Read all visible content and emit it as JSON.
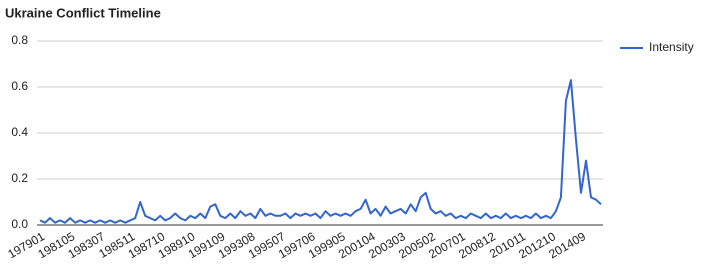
{
  "chart_data": {
    "type": "line",
    "title": "Ukraine Conflict Timeline",
    "categories": [
      "197901",
      null,
      null,
      null,
      null,
      null,
      "198105",
      null,
      null,
      null,
      null,
      null,
      "198307",
      null,
      null,
      null,
      null,
      null,
      "198511",
      null,
      null,
      null,
      null,
      null,
      "198710",
      null,
      null,
      null,
      null,
      null,
      "198910",
      null,
      null,
      null,
      null,
      null,
      "199109",
      null,
      null,
      null,
      null,
      null,
      "199308",
      null,
      null,
      null,
      null,
      null,
      "199507",
      null,
      null,
      null,
      null,
      null,
      "199706",
      null,
      null,
      null,
      null,
      null,
      "199905",
      null,
      null,
      null,
      null,
      null,
      "200104",
      null,
      null,
      null,
      null,
      null,
      "200303",
      null,
      null,
      null,
      null,
      null,
      "200502",
      null,
      null,
      null,
      null,
      null,
      "200701",
      null,
      null,
      null,
      null,
      null,
      "200812",
      null,
      null,
      null,
      null,
      null,
      "201011",
      null,
      null,
      null,
      null,
      null,
      "201210",
      null,
      null,
      null,
      null,
      null,
      "201409",
      null,
      null,
      null,
      null
    ],
    "series": [
      {
        "name": "Intensity",
        "color": "#3366cc",
        "values": [
          0.02,
          0.01,
          0.03,
          0.01,
          0.02,
          0.01,
          0.03,
          0.01,
          0.02,
          0.01,
          0.02,
          0.01,
          0.02,
          0.01,
          0.02,
          0.01,
          0.02,
          0.01,
          0.02,
          0.03,
          0.1,
          0.04,
          0.03,
          0.02,
          0.04,
          0.02,
          0.03,
          0.05,
          0.03,
          0.02,
          0.04,
          0.03,
          0.05,
          0.03,
          0.08,
          0.09,
          0.04,
          0.03,
          0.05,
          0.03,
          0.06,
          0.04,
          0.05,
          0.03,
          0.07,
          0.04,
          0.05,
          0.04,
          0.04,
          0.05,
          0.03,
          0.05,
          0.04,
          0.05,
          0.04,
          0.05,
          0.03,
          0.06,
          0.04,
          0.05,
          0.04,
          0.05,
          0.04,
          0.06,
          0.07,
          0.11,
          0.05,
          0.07,
          0.04,
          0.08,
          0.05,
          0.06,
          0.07,
          0.05,
          0.09,
          0.06,
          0.12,
          0.14,
          0.07,
          0.05,
          0.06,
          0.04,
          0.05,
          0.03,
          0.04,
          0.03,
          0.05,
          0.04,
          0.03,
          0.05,
          0.03,
          0.04,
          0.03,
          0.05,
          0.03,
          0.04,
          0.03,
          0.04,
          0.03,
          0.05,
          0.03,
          0.04,
          0.03,
          0.06,
          0.12,
          0.54,
          0.63,
          0.37,
          0.14,
          0.28,
          0.12,
          0.11,
          0.09
        ]
      }
    ],
    "ylim": [
      0,
      0.8
    ],
    "yticks": [
      {
        "value": 0,
        "label": "0.0"
      },
      0.2,
      0.4,
      0.6,
      0.8
    ],
    "grid": true,
    "legend": "right"
  }
}
